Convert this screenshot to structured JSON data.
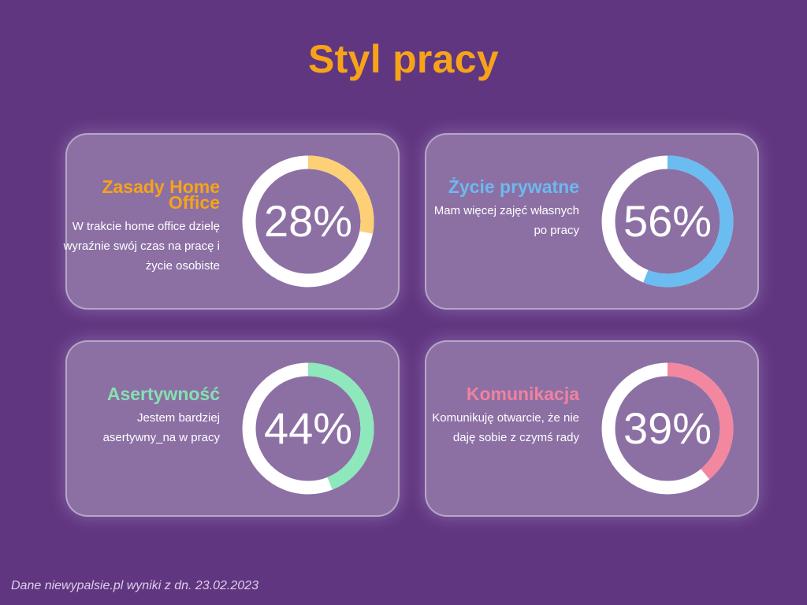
{
  "title": "Styl pracy",
  "footer": "Dane niewypalsie.pl  wyniki z dn. 23.02.2023",
  "colors": {
    "background": "#603680",
    "title": "#f6a31a",
    "card": "#8c70a4",
    "ring_track": "#ffffff"
  },
  "chart_data": [
    {
      "type": "donut",
      "title": "Zasady Home Office",
      "description": "W trakcie home office dzielę wyraźnie swój czas na pracę i życie osobiste",
      "value": 28,
      "label": "28%",
      "title_color": "#f6a31a",
      "ring_color": "#fdd078"
    },
    {
      "type": "donut",
      "title": "Życie prywatne",
      "description": "Mam więcej zajęć własnych po pracy",
      "value": 56,
      "label": "56%",
      "title_color": "#6db9ef",
      "ring_color": "#6bbcf0"
    },
    {
      "type": "donut",
      "title": "Asertywność",
      "description": "Jestem bardziej asertywny_na w pracy",
      "value": 44,
      "label": "44%",
      "title_color": "#86e0b2",
      "ring_color": "#8ee8bb"
    },
    {
      "type": "donut",
      "title": "Komunikacja",
      "description": "Komunikuję otwarcie, że nie daję sobie z czymś rady",
      "value": 39,
      "label": "39%",
      "title_color": "#f0829f",
      "ring_color": "#f2879f"
    }
  ]
}
